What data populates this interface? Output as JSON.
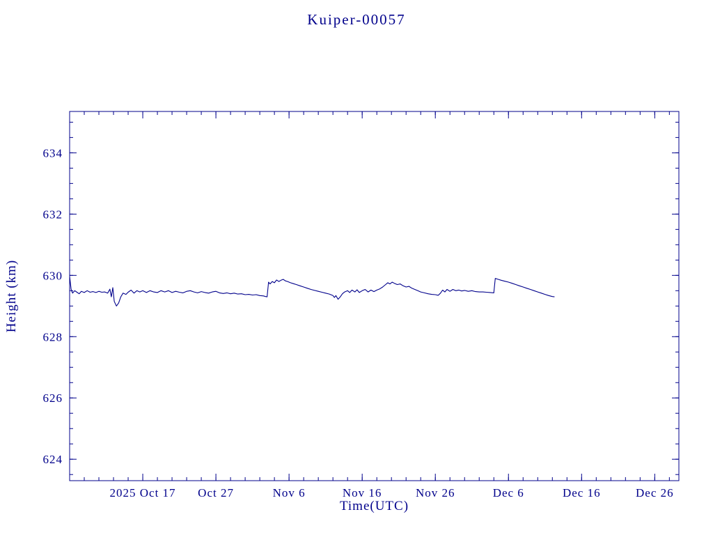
{
  "chart": {
    "title": "Kuiper-00057",
    "xlabel": "Time(UTC)",
    "ylabel": "Height (km)"
  },
  "chart_data": {
    "type": "line",
    "title": "Kuiper-00057",
    "xlabel": "Time(UTC)",
    "ylabel": "Height (km)",
    "line_color": "#00008b",
    "grid": false,
    "legend": "none",
    "x_axis": {
      "units": "days since 2025-10-07 (estimated axis origin)",
      "range_days": [
        0,
        83.3
      ],
      "minor_tick_step_days": 2,
      "major_ticks": [
        {
          "label": "2025 Oct 17",
          "day": 10
        },
        {
          "label": "Oct 27",
          "day": 20
        },
        {
          "label": "Nov 6",
          "day": 30
        },
        {
          "label": "Nov 16",
          "day": 40
        },
        {
          "label": "Nov 26",
          "day": 50
        },
        {
          "label": "Dec 6",
          "day": 60
        },
        {
          "label": "Dec 16",
          "day": 70
        },
        {
          "label": "Dec 26",
          "day": 80
        }
      ]
    },
    "y_axis": {
      "range": [
        623.3,
        635.35
      ],
      "minor_tick_step": 0.5,
      "major_ticks": [
        624,
        626,
        628,
        630,
        632,
        634
      ]
    },
    "series": [
      {
        "name": "height_km",
        "points": [
          [
            0,
            629.97
          ],
          [
            0.2,
            629.55
          ],
          [
            0.4,
            629.42
          ],
          [
            0.7,
            629.5
          ],
          [
            1,
            629.45
          ],
          [
            1.3,
            629.4
          ],
          [
            1.6,
            629.48
          ],
          [
            2,
            629.44
          ],
          [
            2.4,
            629.5
          ],
          [
            2.8,
            629.45
          ],
          [
            3.2,
            629.47
          ],
          [
            3.6,
            629.44
          ],
          [
            4,
            629.48
          ],
          [
            4.4,
            629.45
          ],
          [
            4.8,
            629.46
          ],
          [
            5.2,
            629.42
          ],
          [
            5.5,
            629.55
          ],
          [
            5.7,
            629.3
          ],
          [
            5.9,
            629.6
          ],
          [
            6.1,
            629.15
          ],
          [
            6.4,
            629.0
          ],
          [
            6.7,
            629.1
          ],
          [
            7,
            629.3
          ],
          [
            7.3,
            629.42
          ],
          [
            7.7,
            629.38
          ],
          [
            8,
            629.45
          ],
          [
            8.4,
            629.52
          ],
          [
            8.8,
            629.42
          ],
          [
            9.2,
            629.5
          ],
          [
            9.6,
            629.46
          ],
          [
            10,
            629.5
          ],
          [
            10.5,
            629.44
          ],
          [
            11,
            629.5
          ],
          [
            11.5,
            629.46
          ],
          [
            12,
            629.44
          ],
          [
            12.5,
            629.5
          ],
          [
            13,
            629.46
          ],
          [
            13.5,
            629.5
          ],
          [
            14,
            629.44
          ],
          [
            14.5,
            629.48
          ],
          [
            15,
            629.45
          ],
          [
            15.5,
            629.43
          ],
          [
            16,
            629.48
          ],
          [
            16.5,
            629.5
          ],
          [
            17,
            629.46
          ],
          [
            17.5,
            629.43
          ],
          [
            18,
            629.47
          ],
          [
            18.5,
            629.44
          ],
          [
            19,
            629.42
          ],
          [
            19.5,
            629.46
          ],
          [
            20,
            629.48
          ],
          [
            20.5,
            629.43
          ],
          [
            21,
            629.41
          ],
          [
            21.5,
            629.43
          ],
          [
            22,
            629.4
          ],
          [
            22.5,
            629.42
          ],
          [
            23,
            629.39
          ],
          [
            23.5,
            629.4
          ],
          [
            24,
            629.37
          ],
          [
            24.5,
            629.38
          ],
          [
            25,
            629.36
          ],
          [
            25.5,
            629.37
          ],
          [
            26,
            629.34
          ],
          [
            26.5,
            629.33
          ],
          [
            26.8,
            629.31
          ],
          [
            27,
            629.3
          ],
          [
            27.2,
            629.78
          ],
          [
            27.4,
            629.72
          ],
          [
            27.7,
            629.8
          ],
          [
            28,
            629.76
          ],
          [
            28.3,
            629.85
          ],
          [
            28.6,
            629.8
          ],
          [
            28.9,
            629.84
          ],
          [
            29.2,
            629.87
          ],
          [
            29.5,
            629.82
          ],
          [
            29.8,
            629.8
          ],
          [
            30.2,
            629.76
          ],
          [
            30.6,
            629.73
          ],
          [
            31,
            629.7
          ],
          [
            31.5,
            629.66
          ],
          [
            32,
            629.62
          ],
          [
            32.5,
            629.58
          ],
          [
            33,
            629.54
          ],
          [
            33.5,
            629.51
          ],
          [
            34,
            629.48
          ],
          [
            34.5,
            629.45
          ],
          [
            35,
            629.42
          ],
          [
            35.5,
            629.39
          ],
          [
            36,
            629.34
          ],
          [
            36.2,
            629.28
          ],
          [
            36.4,
            629.34
          ],
          [
            36.7,
            629.22
          ],
          [
            37,
            629.3
          ],
          [
            37.3,
            629.4
          ],
          [
            37.6,
            629.46
          ],
          [
            38,
            629.5
          ],
          [
            38.3,
            629.44
          ],
          [
            38.6,
            629.52
          ],
          [
            39,
            629.46
          ],
          [
            39.3,
            629.53
          ],
          [
            39.6,
            629.44
          ],
          [
            40,
            629.5
          ],
          [
            40.4,
            629.54
          ],
          [
            40.8,
            629.46
          ],
          [
            41.2,
            629.52
          ],
          [
            41.6,
            629.47
          ],
          [
            42,
            629.52
          ],
          [
            42.4,
            629.56
          ],
          [
            42.8,
            629.62
          ],
          [
            43.2,
            629.7
          ],
          [
            43.5,
            629.76
          ],
          [
            43.8,
            629.72
          ],
          [
            44.1,
            629.78
          ],
          [
            44.4,
            629.74
          ],
          [
            44.8,
            629.7
          ],
          [
            45.2,
            629.72
          ],
          [
            45.6,
            629.66
          ],
          [
            46,
            629.62
          ],
          [
            46.4,
            629.64
          ],
          [
            46.8,
            629.58
          ],
          [
            47.2,
            629.54
          ],
          [
            47.6,
            629.5
          ],
          [
            48,
            629.46
          ],
          [
            48.5,
            629.43
          ],
          [
            49,
            629.4
          ],
          [
            49.5,
            629.38
          ],
          [
            50,
            629.37
          ],
          [
            50.4,
            629.35
          ],
          [
            50.7,
            629.42
          ],
          [
            51,
            629.52
          ],
          [
            51.3,
            629.46
          ],
          [
            51.6,
            629.54
          ],
          [
            52,
            629.48
          ],
          [
            52.4,
            629.54
          ],
          [
            52.8,
            629.5
          ],
          [
            53.2,
            629.52
          ],
          [
            53.6,
            629.49
          ],
          [
            54,
            629.51
          ],
          [
            54.5,
            629.48
          ],
          [
            55,
            629.5
          ],
          [
            55.5,
            629.47
          ],
          [
            56,
            629.46
          ],
          [
            56.5,
            629.46
          ],
          [
            57,
            629.45
          ],
          [
            57.5,
            629.44
          ],
          [
            58,
            629.43
          ],
          [
            58.2,
            629.9
          ],
          [
            58.6,
            629.87
          ],
          [
            59,
            629.84
          ],
          [
            59.5,
            629.81
          ],
          [
            60,
            629.78
          ],
          [
            60.5,
            629.74
          ],
          [
            61,
            629.7
          ],
          [
            61.5,
            629.66
          ],
          [
            62,
            629.62
          ],
          [
            62.5,
            629.58
          ],
          [
            63,
            629.54
          ],
          [
            63.5,
            629.5
          ],
          [
            64,
            629.46
          ],
          [
            64.5,
            629.42
          ],
          [
            65,
            629.38
          ],
          [
            65.5,
            629.34
          ],
          [
            66,
            629.31
          ],
          [
            66.3,
            629.3
          ]
        ]
      }
    ]
  }
}
